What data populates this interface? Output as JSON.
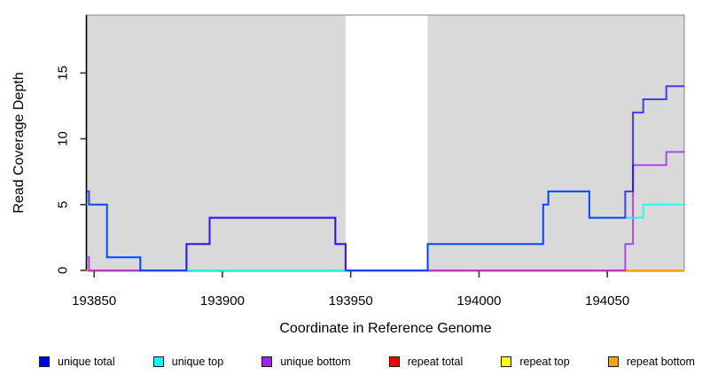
{
  "chart_data": {
    "type": "line",
    "subtype": "step",
    "title": "",
    "xlabel": "Coordinate in Reference Genome",
    "ylabel": "Read Coverage Depth",
    "xlim": [
      193847,
      194080
    ],
    "ylim": [
      0,
      19.4
    ],
    "x_ticks": [
      193850,
      193900,
      193950,
      194000,
      194050
    ],
    "y_ticks": [
      0,
      5,
      10,
      15
    ],
    "grid": false,
    "legend_position": "bottom",
    "plot_bg_color": "#d9d9d9",
    "gap_region": [
      193948,
      193980
    ],
    "gap_color": "#ffffff",
    "axis_color": "#000000",
    "plot_border_color": "#979797",
    "series": [
      {
        "name": "unique total",
        "color": "#0000ff",
        "opacity": 0.72,
        "steps": [
          [
            193847,
            6
          ],
          [
            193848,
            5
          ],
          [
            193855,
            1
          ],
          [
            193868,
            0
          ],
          [
            193886,
            2
          ],
          [
            193895,
            4
          ],
          [
            193944,
            2
          ],
          [
            193948,
            0
          ],
          [
            193980,
            2
          ],
          [
            194025,
            5
          ],
          [
            194027,
            6
          ],
          [
            194043,
            4
          ],
          [
            194057,
            6
          ],
          [
            194060,
            12
          ],
          [
            194064,
            13
          ],
          [
            194073,
            14
          ]
        ]
      },
      {
        "name": "unique top",
        "color": "#00ffff",
        "opacity": 0.85,
        "steps": [
          [
            193847,
            5
          ],
          [
            193855,
            1
          ],
          [
            193868,
            0
          ],
          [
            193980,
            2
          ],
          [
            194025,
            5
          ],
          [
            194027,
            6
          ],
          [
            194043,
            4
          ],
          [
            194064,
            5
          ]
        ]
      },
      {
        "name": "unique bottom",
        "color": "#a020f0",
        "opacity": 0.78,
        "steps": [
          [
            193847,
            1
          ],
          [
            193848,
            0
          ],
          [
            193886,
            2
          ],
          [
            193895,
            4
          ],
          [
            193944,
            2
          ],
          [
            193948,
            0
          ],
          [
            194057,
            2
          ],
          [
            194060,
            8
          ],
          [
            194073,
            9
          ]
        ]
      },
      {
        "name": "repeat total",
        "color": "#ff0000",
        "opacity": 0.85,
        "steps": [
          [
            193847,
            0
          ]
        ]
      },
      {
        "name": "repeat top",
        "color": "#ffff00",
        "opacity": 1,
        "steps": [
          [
            193847,
            0
          ]
        ]
      },
      {
        "name": "repeat bottom",
        "color": "#ffa500",
        "opacity": 1,
        "steps": [
          [
            193847,
            0
          ]
        ]
      }
    ],
    "draw_order": [
      "repeat total",
      "repeat top",
      "repeat bottom",
      "unique bottom",
      "unique top",
      "unique total"
    ]
  }
}
